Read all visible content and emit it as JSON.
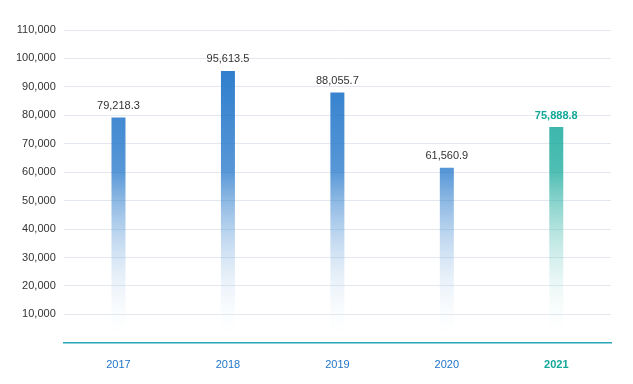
{
  "chart_data": {
    "type": "bar",
    "categories": [
      "2017",
      "2018",
      "2019",
      "2020",
      "2021"
    ],
    "values": [
      79218.3,
      95613.5,
      88055.7,
      61560.9,
      75888.8
    ],
    "value_labels": [
      "79,218.3",
      "95,613.5",
      "88,055.7",
      "61,560.9",
      "75,888.8"
    ],
    "colors": [
      "#1f74c9",
      "#1f74c9",
      "#1f74c9",
      "#1f74c9",
      "#14a89a"
    ],
    "data_labels": true,
    "ylim": [
      0,
      110000
    ],
    "yticks": [
      {
        "value": 10000,
        "label": "10,000"
      },
      {
        "value": 20000,
        "label": "20,000"
      },
      {
        "value": 30000,
        "label": "30,000"
      },
      {
        "value": 40000,
        "label": "40,000"
      },
      {
        "value": 50000,
        "label": "50,000"
      },
      {
        "value": 60000,
        "label": "60,000"
      },
      {
        "value": 70000,
        "label": "70,000"
      },
      {
        "value": 80000,
        "label": "80,000"
      },
      {
        "value": 90000,
        "label": "90,000"
      },
      {
        "value": 100000,
        "label": "100,000"
      },
      {
        "value": 110000,
        "label": "110,000"
      }
    ],
    "grid": true
  }
}
